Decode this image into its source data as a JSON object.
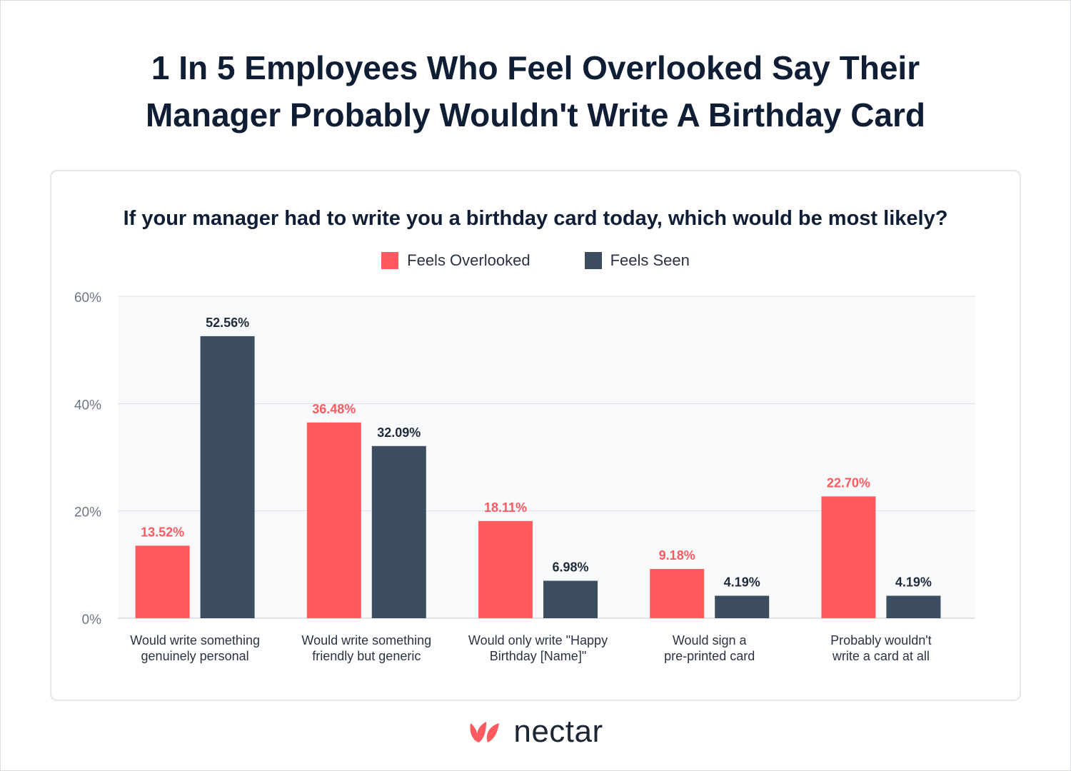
{
  "title": "1 In 5 Employees Who Feel Overlooked Say Their\nManager Probably Wouldn't Write A Birthday Card",
  "brand": {
    "name": "nectar",
    "logo_icon": "nectar-petals-logo",
    "color": "#ff5a5f"
  },
  "colors": {
    "overlooked": "#ff5a60",
    "seen": "#3c4d5f",
    "plot_bg": "#f8f9fa",
    "grid": "#dde1e6"
  },
  "chart_data": {
    "type": "bar",
    "title": "If your manager had to write you a birthday card today, which would be most likely?",
    "categories": [
      "Would write something\ngenuinely personal",
      "Would write something\nfriendly but generic",
      "Would only write \"Happy\nBirthday [Name]\"",
      "Would sign a\npre-printed card",
      "Probably wouldn't\nwrite a card at all"
    ],
    "series": [
      {
        "name": "Feels Overlooked",
        "values": [
          13.52,
          36.48,
          18.11,
          9.18,
          22.7
        ],
        "labels": [
          "13.52%",
          "36.48%",
          "18.11%",
          "9.18%",
          "22.70%"
        ]
      },
      {
        "name": "Feels Seen",
        "values": [
          52.56,
          32.09,
          6.98,
          4.19,
          4.19
        ],
        "labels": [
          "52.56%",
          "32.09%",
          "6.98%",
          "4.19%",
          "4.19%"
        ]
      }
    ],
    "yticks": [
      "0%",
      "20%",
      "40%",
      "60%"
    ],
    "ylim": [
      0,
      60
    ],
    "grid": true,
    "legend": "top-center"
  }
}
